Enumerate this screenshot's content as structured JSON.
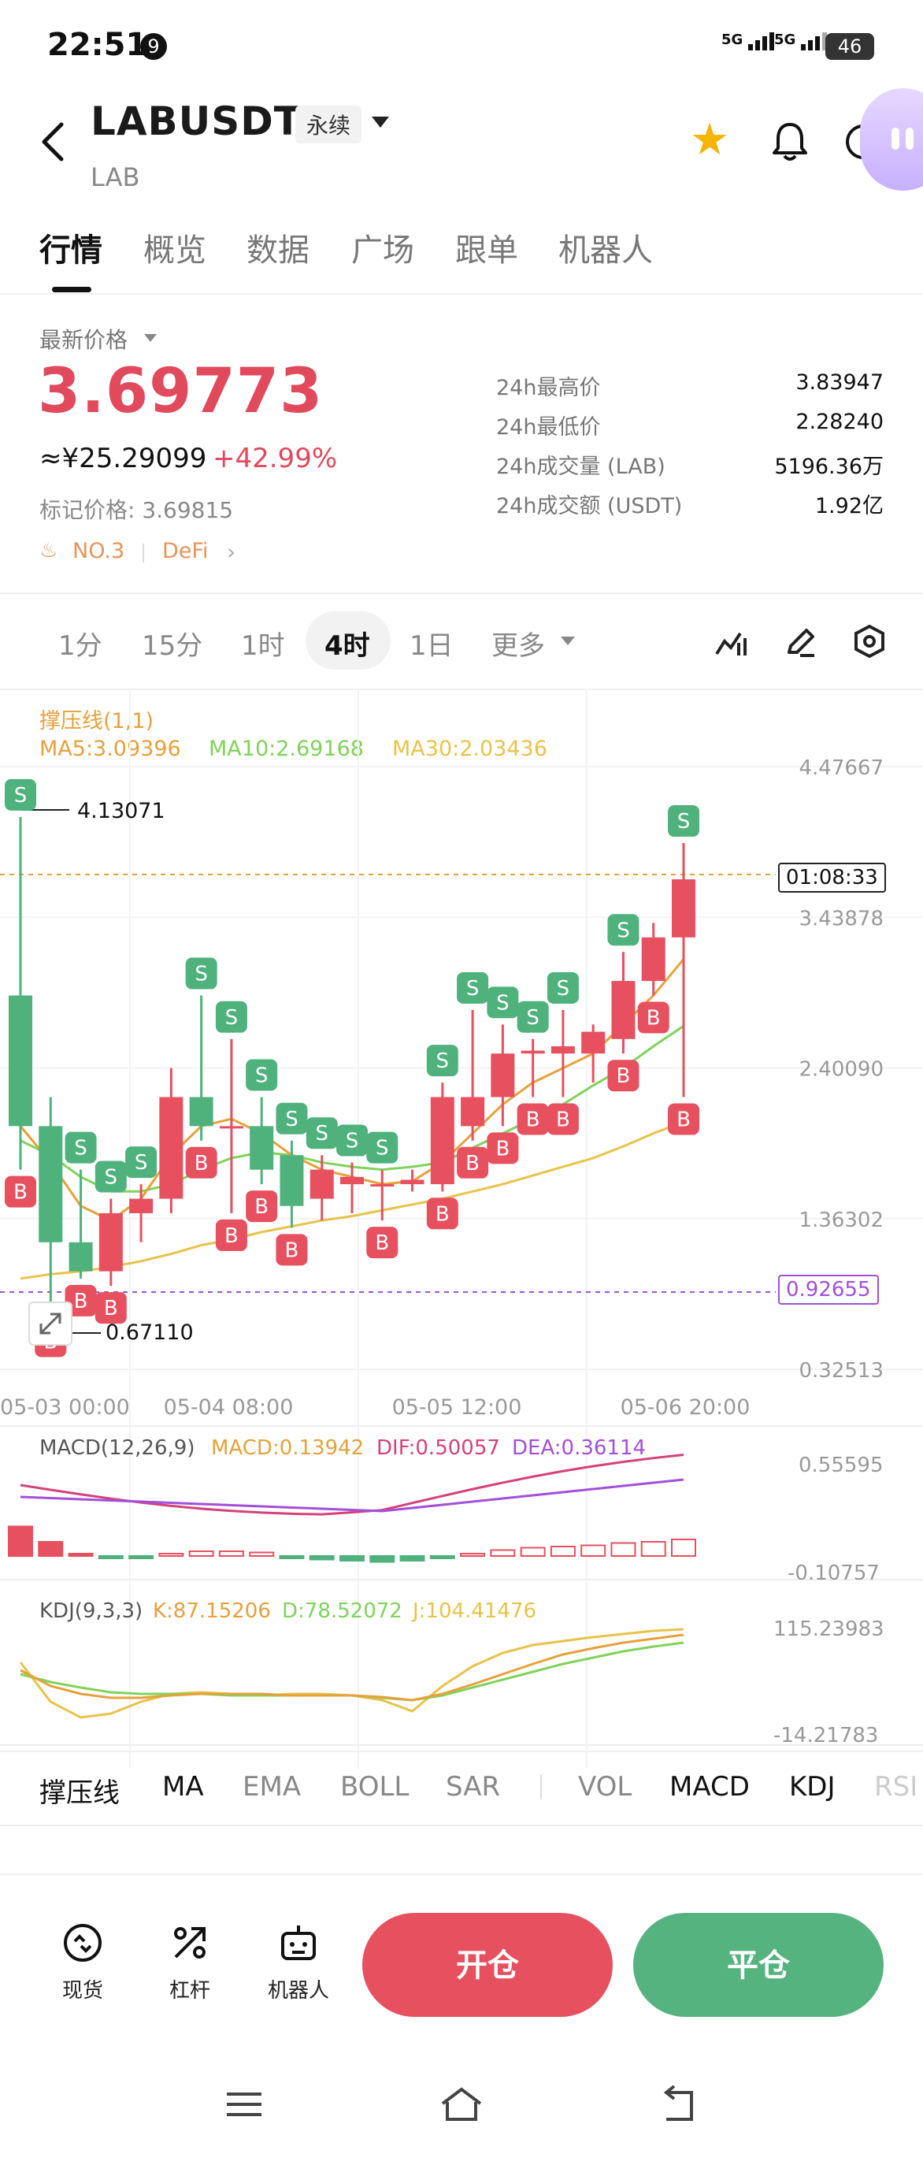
{
  "status": {
    "time": "22:51",
    "notif": "9",
    "net1": "5G",
    "net2": "5G",
    "battery": "46"
  },
  "header": {
    "title": "LABUSDT",
    "tag": "永续",
    "subtitle": "LAB"
  },
  "tabs": [
    "行情",
    "概览",
    "数据",
    "广场",
    "跟单",
    "机器人"
  ],
  "price": {
    "latest_label": "最新价格",
    "last": "3.69773",
    "cny": "≈¥25.29099",
    "change": "+42.99%",
    "mark": "标记价格: 3.69815",
    "rank": "NO.3",
    "sector": "DeFi"
  },
  "stats": [
    {
      "label": "24h最高价",
      "value": "3.83947"
    },
    {
      "label": "24h最低价",
      "value": "2.28240"
    },
    {
      "label": "24h成交量 (LAB)",
      "value": "5196.36万"
    },
    {
      "label": "24h成交额 (USDT)",
      "value": "1.92亿"
    }
  ],
  "intervals": [
    "1分",
    "15分",
    "1时",
    "4时",
    "1日",
    "更多"
  ],
  "indicator": {
    "overlay_name": "撑压线(1,1)",
    "ma5": "MA5:3.09396",
    "ma10": "MA10:2.69168",
    "ma30": "MA30:2.03436"
  },
  "chart_data": {
    "type": "candlestick",
    "price_axis": [
      "4.47667",
      "3.43878",
      "2.40090",
      "1.36302",
      "0.32513"
    ],
    "ylim": [
      0.32513,
      4.47667
    ],
    "time_axis": [
      "05-03 00:00",
      "05-04 08:00",
      "05-05 12:00",
      "05-06 20:00"
    ],
    "high_label": "4.13071",
    "low_label": "0.67110",
    "countdown": "01:08:33",
    "ref_line": "0.92655",
    "candles": [
      {
        "o": 2.9,
        "h": 4.13,
        "l": 1.7,
        "c": 2.0
      },
      {
        "o": 2.0,
        "h": 2.2,
        "l": 0.67,
        "c": 1.2
      },
      {
        "o": 1.2,
        "h": 1.7,
        "l": 0.95,
        "c": 1.0
      },
      {
        "o": 1.0,
        "h": 1.5,
        "l": 0.9,
        "c": 1.4
      },
      {
        "o": 1.4,
        "h": 1.6,
        "l": 1.2,
        "c": 1.5
      },
      {
        "o": 1.5,
        "h": 2.4,
        "l": 1.4,
        "c": 2.2
      },
      {
        "o": 2.2,
        "h": 2.9,
        "l": 1.9,
        "c": 2.0
      },
      {
        "o": 2.0,
        "h": 2.6,
        "l": 1.4,
        "c": 2.0
      },
      {
        "o": 2.0,
        "h": 2.2,
        "l": 1.6,
        "c": 1.7
      },
      {
        "o": 1.8,
        "h": 1.9,
        "l": 1.3,
        "c": 1.45
      },
      {
        "o": 1.5,
        "h": 1.8,
        "l": 1.35,
        "c": 1.7
      },
      {
        "o": 1.6,
        "h": 1.75,
        "l": 1.4,
        "c": 1.65
      },
      {
        "o": 1.6,
        "h": 1.7,
        "l": 1.35,
        "c": 1.6
      },
      {
        "o": 1.6,
        "h": 1.7,
        "l": 1.55,
        "c": 1.63
      },
      {
        "o": 1.6,
        "h": 2.3,
        "l": 1.55,
        "c": 2.2
      },
      {
        "o": 2.0,
        "h": 2.8,
        "l": 1.9,
        "c": 2.2
      },
      {
        "o": 2.2,
        "h": 2.7,
        "l": 2.0,
        "c": 2.5
      },
      {
        "o": 2.5,
        "h": 2.6,
        "l": 2.2,
        "c": 2.52
      },
      {
        "o": 2.5,
        "h": 2.8,
        "l": 2.2,
        "c": 2.55
      },
      {
        "o": 2.5,
        "h": 2.7,
        "l": 2.3,
        "c": 2.65
      },
      {
        "o": 2.6,
        "h": 3.2,
        "l": 2.5,
        "c": 3.0
      },
      {
        "o": 3.0,
        "h": 3.4,
        "l": 2.9,
        "c": 3.3
      },
      {
        "o": 3.3,
        "h": 3.95,
        "l": 2.2,
        "c": 3.7
      }
    ],
    "signals": [
      {
        "i": 0,
        "t": "S"
      },
      {
        "i": 0,
        "t": "B"
      },
      {
        "i": 1,
        "t": "B"
      },
      {
        "i": 2,
        "t": "S"
      },
      {
        "i": 2,
        "t": "B"
      },
      {
        "i": 3,
        "t": "S"
      },
      {
        "i": 3,
        "t": "B"
      },
      {
        "i": 4,
        "t": "S"
      },
      {
        "i": 6,
        "t": "S"
      },
      {
        "i": 6,
        "t": "B"
      },
      {
        "i": 7,
        "t": "S"
      },
      {
        "i": 7,
        "t": "B"
      },
      {
        "i": 8,
        "t": "S"
      },
      {
        "i": 8,
        "t": "B"
      },
      {
        "i": 9,
        "t": "S"
      },
      {
        "i": 9,
        "t": "B"
      },
      {
        "i": 10,
        "t": "S"
      },
      {
        "i": 11,
        "t": "S"
      },
      {
        "i": 12,
        "t": "S"
      },
      {
        "i": 12,
        "t": "B"
      },
      {
        "i": 14,
        "t": "S"
      },
      {
        "i": 14,
        "t": "B"
      },
      {
        "i": 15,
        "t": "S"
      },
      {
        "i": 15,
        "t": "B"
      },
      {
        "i": 16,
        "t": "S"
      },
      {
        "i": 16,
        "t": "B"
      },
      {
        "i": 17,
        "t": "S"
      },
      {
        "i": 17,
        "t": "B"
      },
      {
        "i": 18,
        "t": "S"
      },
      {
        "i": 18,
        "t": "B"
      },
      {
        "i": 20,
        "t": "S"
      },
      {
        "i": 20,
        "t": "B"
      },
      {
        "i": 21,
        "t": "B"
      },
      {
        "i": 22,
        "t": "S"
      },
      {
        "i": 22,
        "t": "B"
      }
    ],
    "ma5": [
      2.0,
      1.75,
      1.45,
      1.35,
      1.5,
      1.8,
      2.0,
      2.05,
      1.95,
      1.8,
      1.7,
      1.65,
      1.6,
      1.62,
      1.75,
      1.95,
      2.15,
      2.3,
      2.4,
      2.5,
      2.7,
      2.9,
      3.15
    ],
    "ma10": [
      1.9,
      1.8,
      1.65,
      1.55,
      1.55,
      1.6,
      1.7,
      1.78,
      1.82,
      1.8,
      1.75,
      1.72,
      1.7,
      1.72,
      1.75,
      1.85,
      1.95,
      2.05,
      2.15,
      2.28,
      2.4,
      2.55,
      2.69
    ],
    "ma30": [
      0.95,
      0.98,
      1.0,
      1.03,
      1.07,
      1.12,
      1.18,
      1.22,
      1.27,
      1.31,
      1.35,
      1.38,
      1.42,
      1.46,
      1.5,
      1.55,
      1.6,
      1.66,
      1.72,
      1.78,
      1.86,
      1.95,
      2.03
    ]
  },
  "macd": {
    "name": "MACD(12,26,9)",
    "macd": "MACD:0.13942",
    "dif": "DIF:0.50057",
    "dea": "DEA:0.36114",
    "axis": [
      "0.55595",
      "-0.10757"
    ],
    "hist": [
      0.25,
      0.12,
      0.02,
      -0.02,
      -0.02,
      0.02,
      0.04,
      0.04,
      0.03,
      -0.02,
      -0.03,
      -0.04,
      -0.05,
      -0.04,
      -0.02,
      0.02,
      0.05,
      0.07,
      0.08,
      0.09,
      0.11,
      0.12,
      0.14
    ]
  },
  "kdj": {
    "name": "KDJ(9,3,3)",
    "k": "K:87.15206",
    "d": "D:78.52072",
    "j": "J:104.41476",
    "axis": [
      "115.23983",
      "-14.21783"
    ]
  },
  "indicator_tabs": [
    "撑压线",
    "MA",
    "EMA",
    "BOLL",
    "SAR",
    "VOL",
    "MACD",
    "KDJ",
    "RSI"
  ],
  "bottom_nav": [
    "现货",
    "杠杆",
    "机器人"
  ],
  "actions": {
    "open": "开仓",
    "close": "平仓"
  },
  "colors": {
    "up": "#e6505f",
    "down": "#4fb27d",
    "accent_red": "#e14a5d",
    "ma5": "#e6a13b",
    "ma10": "#7fd35a",
    "ma30": "#e8c34a"
  }
}
